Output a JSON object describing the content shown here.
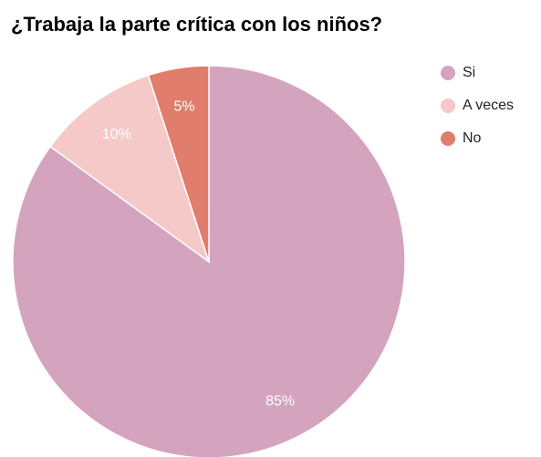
{
  "chart_data": {
    "type": "pie",
    "title": "¿Trabaja la parte crítica con los niños?",
    "categories": [
      "Si",
      "A veces",
      "No"
    ],
    "values": [
      85,
      10,
      5
    ],
    "value_labels": [
      "85%",
      "10%",
      "5%"
    ],
    "colors": [
      "#d4a3be",
      "#f5c9c8",
      "#e07d6c"
    ],
    "legend": "right"
  }
}
